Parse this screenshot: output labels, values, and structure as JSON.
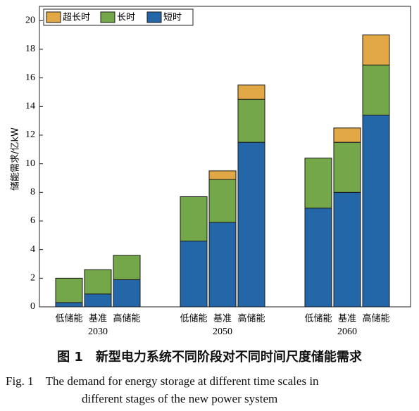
{
  "chart_data": {
    "type": "bar",
    "stacked": true,
    "ylabel": "储能需求/亿kW",
    "ylim": [
      0,
      21
    ],
    "yticks": [
      0,
      2,
      4,
      6,
      8,
      10,
      12,
      14,
      16,
      18,
      20
    ],
    "grid": false,
    "legend_position": "top-left",
    "legend_order": [
      "超长时",
      "长时",
      "短时"
    ],
    "groups": [
      {
        "label": "2030",
        "categories": [
          "低储能",
          "基准",
          "高储能"
        ]
      },
      {
        "label": "2050",
        "categories": [
          "低储能",
          "基准",
          "高储能"
        ]
      },
      {
        "label": "2060",
        "categories": [
          "低储能",
          "基准",
          "高储能"
        ]
      }
    ],
    "series": [
      {
        "name": "短时",
        "color": "#2467a8",
        "values": [
          0.3,
          0.9,
          1.9,
          4.6,
          5.9,
          11.5,
          6.9,
          8.0,
          13.4
        ]
      },
      {
        "name": "长时",
        "color": "#74a64a",
        "values": [
          1.7,
          1.7,
          1.7,
          3.1,
          3.0,
          3.0,
          3.5,
          3.5,
          3.5
        ]
      },
      {
        "name": "超长时",
        "color": "#e2a845",
        "values": [
          0.0,
          0.0,
          0.0,
          0.0,
          0.6,
          1.0,
          0.0,
          1.0,
          2.1
        ]
      }
    ]
  },
  "caption": {
    "zh": "图 1　新型电力系统不同阶段对不同时间尺度储能需求",
    "en_line1": "Fig. 1　The demand for energy storage at different time scales in",
    "en_line2": "different stages of the new power system"
  }
}
